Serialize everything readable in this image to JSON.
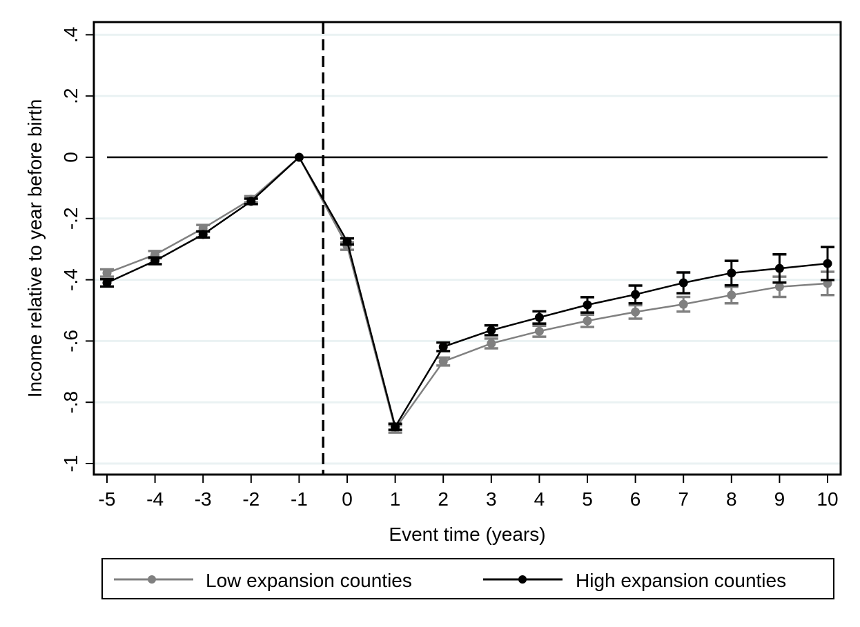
{
  "chart_data": {
    "type": "line",
    "title": "",
    "xlabel": "Event time (years)",
    "ylabel": "Income relative to year before birth",
    "x": [
      -5,
      -4,
      -3,
      -2,
      -1,
      0,
      1,
      2,
      3,
      4,
      5,
      6,
      7,
      8,
      9,
      10
    ],
    "xticks": [
      "-5",
      "-4",
      "-3",
      "-2",
      "-1",
      "0",
      "1",
      "2",
      "3",
      "4",
      "5",
      "6",
      "7",
      "8",
      "9",
      "10"
    ],
    "yticks": [
      {
        "v": 0.4,
        "label": ".4"
      },
      {
        "v": 0.2,
        "label": ".2"
      },
      {
        "v": 0,
        "label": "0"
      },
      {
        "v": -0.2,
        "label": "-.2"
      },
      {
        "v": -0.4,
        "label": "-.4"
      },
      {
        "v": -0.6,
        "label": "-.6"
      },
      {
        "v": -0.8,
        "label": "-.8"
      },
      {
        "v": -1,
        "label": "-1"
      }
    ],
    "ylim": [
      -1.03,
      0.42
    ],
    "xlim": [
      -5.3,
      10.25
    ],
    "grid": true,
    "reference_lines": {
      "horizontal": 0,
      "vertical_dashed": -0.5
    },
    "legend_position": "bottom",
    "series": [
      {
        "name": "Low expansion counties",
        "color": "#808080",
        "values": [
          -0.378,
          -0.318,
          -0.232,
          -0.137,
          0,
          -0.29,
          -0.887,
          -0.667,
          -0.608,
          -0.568,
          -0.534,
          -0.505,
          -0.48,
          -0.45,
          -0.423,
          -0.412
        ],
        "ci_half": [
          0.012,
          0.012,
          0.011,
          0.01,
          0,
          0.012,
          0.012,
          0.013,
          0.016,
          0.018,
          0.02,
          0.022,
          0.024,
          0.027,
          0.033,
          0.038
        ]
      },
      {
        "name": "High expansion counties",
        "color": "#000000",
        "values": [
          -0.41,
          -0.338,
          -0.252,
          -0.144,
          0,
          -0.275,
          -0.88,
          -0.619,
          -0.565,
          -0.523,
          -0.482,
          -0.448,
          -0.41,
          -0.378,
          -0.363,
          -0.347
        ],
        "ci_half": [
          0.012,
          0.011,
          0.01,
          0.009,
          0,
          0.01,
          0.01,
          0.014,
          0.016,
          0.02,
          0.025,
          0.029,
          0.034,
          0.04,
          0.046,
          0.054
        ]
      }
    ]
  }
}
